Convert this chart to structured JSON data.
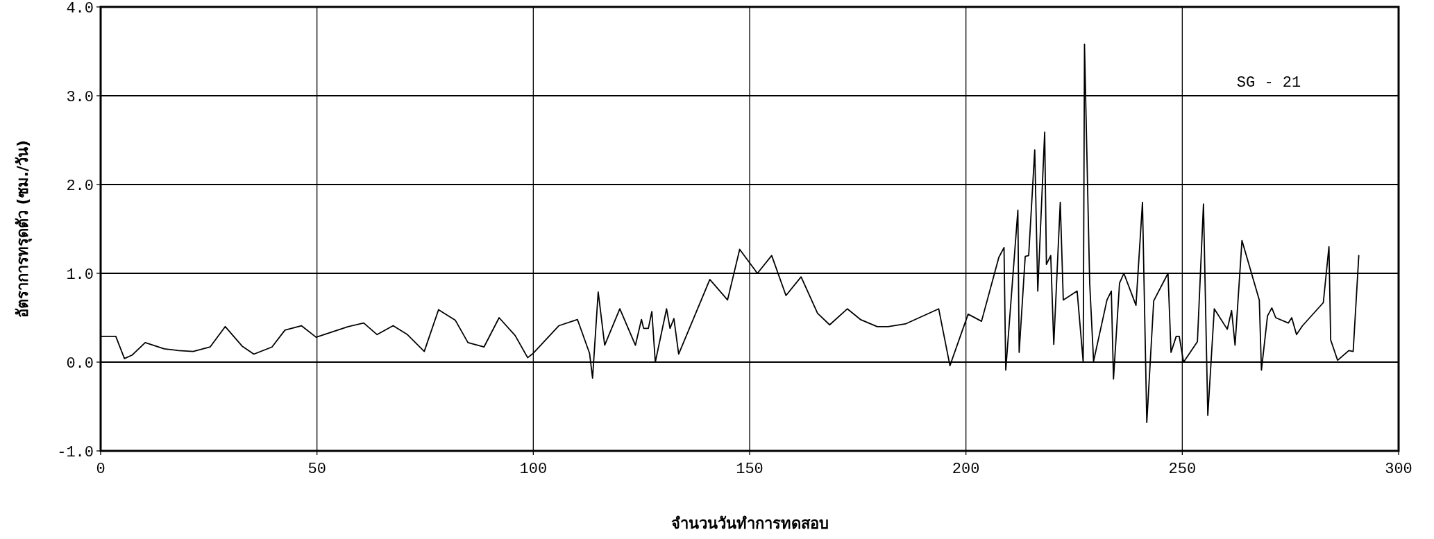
{
  "chart_data": {
    "type": "line",
    "xlabel": "จำนวนวันทำการทดสอบ",
    "ylabel": "อัตราการทรุดตัว (ซม./วัน)",
    "annotations": [
      "SG - 21"
    ],
    "xlim": [
      0,
      300
    ],
    "xticks": [
      0,
      50,
      100,
      150,
      200,
      250,
      300
    ],
    "ylim": [
      -1,
      4
    ],
    "yticks": [
      {
        "value": -1,
        "label": "-1.0"
      },
      {
        "value": 0,
        "label": "0.0"
      },
      {
        "value": 1,
        "label": "1.0"
      },
      {
        "value": 2,
        "label": "2.0"
      },
      {
        "value": 3,
        "label": "3.0"
      },
      {
        "value": 4,
        "label": "4.0"
      }
    ],
    "grid": true,
    "series": [
      {
        "color": "#000000",
        "x": [
          0,
          3.5,
          5.5,
          7.3,
          10.3,
          14.7,
          18,
          21.4,
          25.3,
          28.8,
          32.7,
          35.4,
          39.6,
          42.6,
          46.4,
          49.8,
          57.2,
          60.8,
          63.9,
          67.6,
          70.9,
          74.8,
          78.1,
          82,
          84.9,
          88.6,
          92.1,
          95.8,
          98.7,
          100,
          105.9,
          110.2,
          113,
          113.7,
          115,
          116.5,
          120,
          123.6,
          125,
          125.5,
          126.6,
          127.4,
          128.2,
          130.8,
          131.6,
          132.5,
          133.6,
          140.8,
          144.9,
          147.7,
          151.8,
          155.1,
          158.4,
          161.9,
          165.7,
          168.5,
          172.6,
          175.6,
          179.5,
          182,
          186,
          193.7,
          196.3,
          200.5,
          203.6,
          207.6,
          208.8,
          209.2,
          212,
          212.3,
          213.7,
          214.5,
          215.9,
          216.6,
          218.2,
          218.6,
          219.6,
          220.3,
          221.8,
          222.5,
          225.7,
          227.1,
          227.4,
          228.6,
          229.5,
          232.6,
          233.6,
          234.1,
          235.5,
          236.5,
          239.3,
          240.8,
          241.8,
          243.4,
          246.7,
          247.4,
          248.6,
          249.3,
          250.3,
          253.5,
          254.9,
          255.9,
          257.4,
          260.4,
          261.4,
          262.2,
          263.8,
          267.8,
          268.3,
          269.7,
          270.7,
          271.6,
          274.5,
          275.3,
          276.4,
          277.8,
          282.6,
          283.9,
          284.3,
          285.9,
          288.5,
          289.5,
          290.8
        ],
        "values": [
          0.29,
          0.29,
          0.04,
          0.08,
          0.22,
          0.15,
          0.13,
          0.12,
          0.17,
          0.4,
          0.18,
          0.09,
          0.17,
          0.36,
          0.41,
          0.28,
          0.4,
          0.44,
          0.31,
          0.41,
          0.31,
          0.12,
          0.59,
          0.47,
          0.22,
          0.17,
          0.5,
          0.3,
          0.05,
          0.1,
          0.41,
          0.48,
          0.1,
          -0.18,
          0.79,
          0.19,
          0.6,
          0.19,
          0.48,
          0.38,
          0.38,
          0.57,
          0.0,
          0.6,
          0.38,
          0.49,
          0.09,
          0.93,
          0.7,
          1.27,
          1.0,
          1.2,
          0.75,
          0.96,
          0.55,
          0.42,
          0.6,
          0.48,
          0.4,
          0.4,
          0.43,
          0.6,
          -0.04,
          0.54,
          0.46,
          1.18,
          1.29,
          -0.09,
          1.71,
          0.11,
          1.19,
          1.2,
          2.39,
          0.8,
          2.59,
          1.1,
          1.2,
          0.2,
          1.8,
          0.7,
          0.8,
          0.0,
          3.58,
          0.89,
          0.01,
          0.7,
          0.8,
          -0.19,
          0.89,
          1.0,
          0.64,
          1.8,
          -0.68,
          0.69,
          1.0,
          0.11,
          0.29,
          0.29,
          0.0,
          0.23,
          1.78,
          -0.6,
          0.6,
          0.37,
          0.58,
          0.19,
          1.37,
          0.7,
          -0.09,
          0.52,
          0.61,
          0.5,
          0.44,
          0.5,
          0.31,
          0.41,
          0.67,
          1.3,
          0.25,
          0.02,
          0.13,
          0.12,
          1.2
        ]
      }
    ]
  }
}
